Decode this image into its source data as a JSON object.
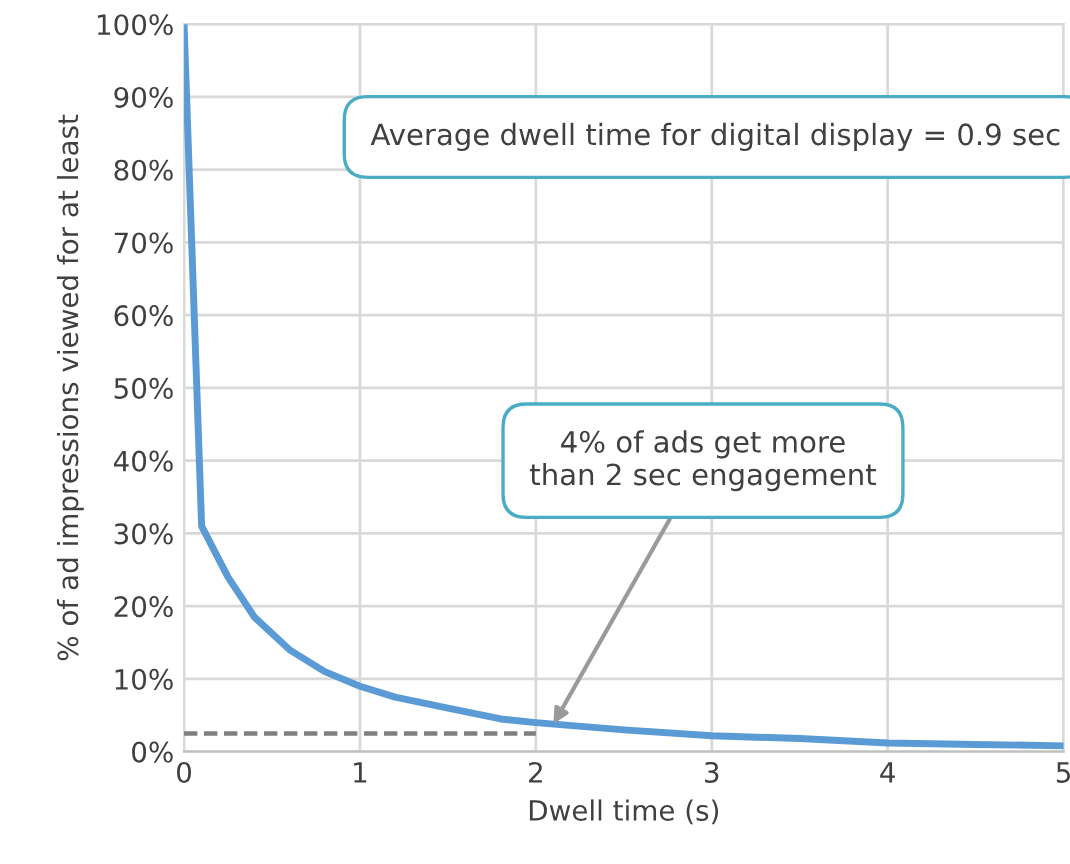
{
  "chart_data": {
    "type": "line",
    "xlabel": "Dwell time (s)",
    "ylabel": "% of ad impressions viewed for at least",
    "series": [
      {
        "color": "#5b9bd5",
        "x": [
          0,
          0.1,
          0.25,
          0.4,
          0.6,
          0.8,
          1,
          1.2,
          1.5,
          1.8,
          2,
          2.5,
          3,
          3.5,
          4,
          4.5,
          5
        ],
        "values": [
          100,
          31,
          24,
          18.5,
          14,
          11,
          9,
          7.5,
          6,
          4.5,
          4,
          3,
          2.2,
          1.8,
          1.2,
          1,
          0.8
        ]
      },
      {
        "color": "#7f7f7f",
        "line_style": "dashed",
        "x": [
          0,
          2
        ],
        "values": [
          2.5,
          2.5
        ]
      }
    ],
    "xlim": [
      0,
      5
    ],
    "xticks": [
      0,
      1,
      2,
      3,
      4,
      5
    ],
    "ylim": [
      0,
      100
    ],
    "yticks": [
      {
        "value": 0,
        "label": "0%"
      },
      {
        "value": 10,
        "label": "10%"
      },
      {
        "value": 20,
        "label": "20%"
      },
      {
        "value": 30,
        "label": "30%"
      },
      {
        "value": 40,
        "label": "40%"
      },
      {
        "value": 50,
        "label": "50%"
      },
      {
        "value": 60,
        "label": "60%"
      },
      {
        "value": 70,
        "label": "70%"
      },
      {
        "value": 80,
        "label": "80%"
      },
      {
        "value": 90,
        "label": "90%"
      },
      {
        "value": 100,
        "label": "100%"
      }
    ],
    "grid": true,
    "annotations": [
      "Average dwell time for digital display = 0.9 sec",
      {
        "text": "4% of ads get more\nthan 2 sec engagement",
        "x": 2.1,
        "y": 3.8
      }
    ]
  }
}
